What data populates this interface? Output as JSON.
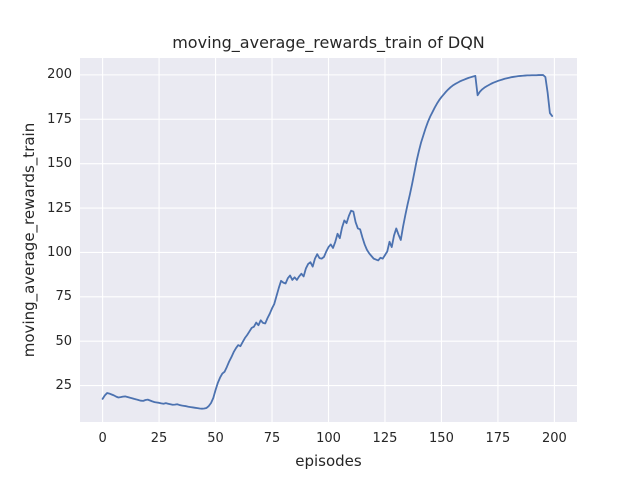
{
  "title": "moving_average_rewards_train of DQN",
  "chart_data": {
    "type": "line",
    "title": "moving_average_rewards_train of DQN",
    "xlabel": "episodes",
    "ylabel": "moving_average_rewards_train",
    "x_ticks": [
      0,
      25,
      50,
      75,
      100,
      125,
      150,
      175,
      200
    ],
    "y_ticks": [
      25,
      50,
      75,
      100,
      125,
      150,
      175,
      200
    ],
    "xlim": [
      -10,
      210
    ],
    "ylim": [
      4.5,
      209.5
    ],
    "grid": true,
    "legend_position": "none",
    "style": "seaborn-darkgrid",
    "colors": {
      "line": "#4C72B0",
      "plot_background": "#EAEAF2",
      "grid": "#FFFFFF",
      "text": "#262626"
    },
    "series": [
      {
        "name": "DQN moving average rewards (train)",
        "x_start": 0,
        "x_step": 1,
        "values": [
          17.5,
          19.5,
          20.8,
          20.5,
          20.0,
          19.5,
          18.8,
          18.3,
          18.5,
          18.8,
          18.9,
          18.6,
          18.2,
          17.9,
          17.5,
          17.2,
          16.8,
          16.5,
          16.4,
          16.9,
          17.1,
          16.6,
          16.1,
          15.7,
          15.5,
          15.3,
          15.0,
          14.8,
          15.1,
          14.8,
          14.5,
          14.2,
          14.3,
          14.5,
          14.1,
          13.8,
          13.6,
          13.4,
          13.1,
          12.9,
          12.7,
          12.5,
          12.3,
          12.1,
          12.0,
          12.1,
          12.4,
          13.5,
          15.2,
          18.0,
          22.5,
          26.5,
          29.5,
          31.8,
          32.8,
          35.5,
          38.5,
          41.0,
          43.8,
          46.0,
          47.8,
          47.2,
          49.5,
          51.8,
          53.5,
          55.5,
          57.5,
          58.2,
          60.5,
          59.0,
          61.8,
          60.3,
          60.0,
          63.0,
          65.5,
          68.5,
          71.0,
          75.5,
          80.0,
          84.0,
          83.0,
          82.5,
          85.5,
          87.0,
          84.5,
          86.0,
          84.5,
          86.5,
          88.0,
          86.5,
          91.0,
          93.5,
          94.5,
          92.0,
          96.5,
          99.0,
          96.8,
          96.5,
          97.5,
          100.5,
          103.0,
          104.5,
          102.5,
          106.0,
          110.5,
          108.0,
          114.0,
          118.0,
          116.5,
          120.5,
          123.5,
          123.0,
          117.0,
          113.5,
          113.0,
          108.5,
          104.5,
          101.5,
          99.5,
          98.0,
          96.5,
          96.0,
          95.5,
          97.0,
          96.5,
          98.5,
          100.5,
          106.0,
          103.0,
          109.5,
          113.5,
          110.0,
          107.0,
          114.5,
          121.0,
          127.0,
          132.5,
          138.5,
          145.0,
          151.5,
          157.0,
          162.0,
          166.0,
          170.0,
          173.5,
          176.5,
          179.0,
          181.5,
          183.8,
          185.8,
          187.5,
          189.0,
          190.5,
          191.8,
          193.0,
          194.0,
          194.8,
          195.5,
          196.2,
          196.8,
          197.3,
          197.8,
          198.3,
          198.7,
          199.1,
          199.4,
          188.5,
          190.5,
          191.8,
          192.8,
          193.6,
          194.3,
          195.0,
          195.6,
          196.1,
          196.6,
          197.0,
          197.4,
          197.8,
          198.1,
          198.4,
          198.7,
          198.9,
          199.1,
          199.3,
          199.4,
          199.5,
          199.6,
          199.7,
          199.7,
          199.8,
          199.8,
          199.8,
          199.9,
          199.9,
          199.9,
          198.8,
          190.0,
          178.5,
          176.8
        ]
      }
    ]
  }
}
